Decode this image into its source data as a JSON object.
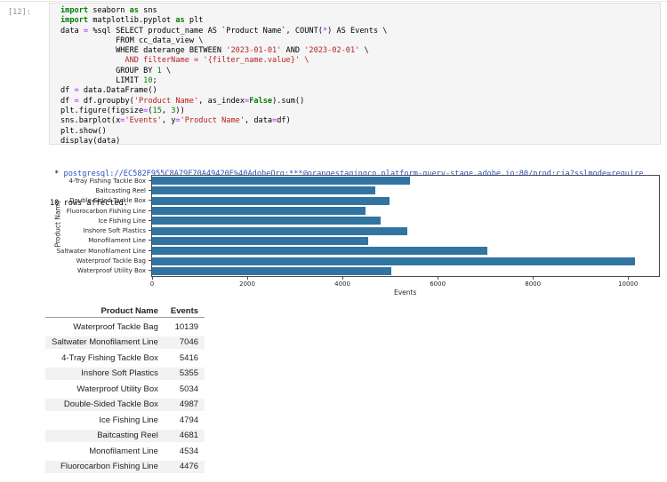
{
  "cell": {
    "prompt": "[12]:",
    "code_lines": [
      [
        {
          "t": "import",
          "c": "kw"
        },
        {
          "t": " seaborn ",
          "c": "pl"
        },
        {
          "t": "as",
          "c": "kw"
        },
        {
          "t": " sns",
          "c": "pl"
        }
      ],
      [
        {
          "t": "import",
          "c": "kw"
        },
        {
          "t": " matplotlib.pyplot ",
          "c": "pl"
        },
        {
          "t": "as",
          "c": "kw"
        },
        {
          "t": " plt",
          "c": "pl"
        }
      ],
      [
        {
          "t": "data ",
          "c": "pl"
        },
        {
          "t": "=",
          "c": "op"
        },
        {
          "t": " %sql SELECT product_name AS `Product Name`, COUNT(",
          "c": "pl"
        },
        {
          "t": "*",
          "c": "op"
        },
        {
          "t": ") AS Events \\",
          "c": "pl"
        }
      ],
      [
        {
          "t": "            FROM cc_data_view \\",
          "c": "pl"
        }
      ],
      [
        {
          "t": "            WHERE daterange BETWEEN ",
          "c": "pl"
        },
        {
          "t": "'2023-01-01'",
          "c": "str"
        },
        {
          "t": " AND ",
          "c": "pl"
        },
        {
          "t": "'2023-02-01'",
          "c": "str"
        },
        {
          "t": " \\",
          "c": "pl"
        }
      ],
      [
        {
          "t": "              AND filterName = '{filter_name.value}' \\",
          "c": "str"
        }
      ],
      [
        {
          "t": "            GROUP BY ",
          "c": "pl"
        },
        {
          "t": "1",
          "c": "num"
        },
        {
          "t": " \\",
          "c": "pl"
        }
      ],
      [
        {
          "t": "            LIMIT ",
          "c": "pl"
        },
        {
          "t": "10",
          "c": "num"
        },
        {
          "t": ";",
          "c": "pl"
        }
      ],
      [
        {
          "t": "df ",
          "c": "pl"
        },
        {
          "t": "=",
          "c": "op"
        },
        {
          "t": " data.DataFrame()",
          "c": "pl"
        }
      ],
      [
        {
          "t": "df ",
          "c": "pl"
        },
        {
          "t": "=",
          "c": "op"
        },
        {
          "t": " df.groupby(",
          "c": "pl"
        },
        {
          "t": "'Product Name'",
          "c": "str"
        },
        {
          "t": ", as_index",
          "c": "pl"
        },
        {
          "t": "=",
          "c": "op"
        },
        {
          "t": "False",
          "c": "kw"
        },
        {
          "t": ").sum()",
          "c": "pl"
        }
      ],
      [
        {
          "t": "plt.figure(figsize",
          "c": "pl"
        },
        {
          "t": "=",
          "c": "op"
        },
        {
          "t": "(",
          "c": "pl"
        },
        {
          "t": "15",
          "c": "num"
        },
        {
          "t": ", ",
          "c": "pl"
        },
        {
          "t": "3",
          "c": "num"
        },
        {
          "t": "))",
          "c": "pl"
        }
      ],
      [
        {
          "t": "sns.barplot(x",
          "c": "pl"
        },
        {
          "t": "=",
          "c": "op"
        },
        {
          "t": "'Events'",
          "c": "str"
        },
        {
          "t": ", y",
          "c": "pl"
        },
        {
          "t": "=",
          "c": "op"
        },
        {
          "t": "'Product Name'",
          "c": "str"
        },
        {
          "t": ", data",
          "c": "pl"
        },
        {
          "t": "=",
          "c": "op"
        },
        {
          "t": "df)",
          "c": "pl"
        }
      ],
      [
        {
          "t": "plt.show()",
          "c": "pl"
        }
      ],
      [
        {
          "t": "display(data)",
          "c": "pl"
        }
      ]
    ]
  },
  "output": {
    "connection_prefix": " * ",
    "connection_string": "postgresql://EC582F955C8A79F70A49420E%40AdobeOrg:***@orangestagingco.platform-query-stage.adobe.io:80/prod:cja?sslmode=require",
    "rows_affected": "10 rows affected."
  },
  "chart_data": {
    "type": "bar",
    "orientation": "horizontal",
    "categories": [
      "4-Tray Fishing Tackle Box",
      "Baitcasting Reel",
      "Double-Sided Tackle Box",
      "Fluorocarbon Fishing Line",
      "Ice Fishing Line",
      "Inshore Soft Plastics",
      "Monofilament Line",
      "Saltwater Monofilament Line",
      "Waterproof Tackle Bag",
      "Waterproof Utility Box"
    ],
    "values": [
      5416,
      4681,
      4987,
      4476,
      4794,
      5355,
      4534,
      7046,
      10139,
      5034
    ],
    "xlabel": "Events",
    "ylabel": "Product Name",
    "xticks": [
      0,
      2000,
      4000,
      6000,
      8000,
      10000
    ],
    "xlim": [
      0,
      10650
    ],
    "grid": false,
    "legend": false,
    "bar_color": "#3274a1"
  },
  "table": {
    "headers": [
      "Product Name",
      "Events"
    ],
    "rows": [
      [
        "Waterproof Tackle Bag",
        "10139"
      ],
      [
        "Saltwater Monofilament Line",
        "7046"
      ],
      [
        "4-Tray Fishing Tackle Box",
        "5416"
      ],
      [
        "Inshore Soft Plastics",
        "5355"
      ],
      [
        "Waterproof Utility Box",
        "5034"
      ],
      [
        "Double-Sided Tackle Box",
        "4987"
      ],
      [
        "Ice Fishing Line",
        "4794"
      ],
      [
        "Baitcasting Reel",
        "4681"
      ],
      [
        "Monofilament Line",
        "4534"
      ],
      [
        "Fluorocarbon Fishing Line",
        "4476"
      ]
    ]
  },
  "colors": {
    "keyword": "#008000",
    "number": "#008000",
    "string": "#BA2121",
    "operator": "#AA22FF",
    "connection_link": "#2a52be",
    "bar": "#3274a1",
    "cell_background": "#f5f5f5",
    "prompt": "#8f8f8f",
    "table_stripe": "#f2f2f2"
  }
}
